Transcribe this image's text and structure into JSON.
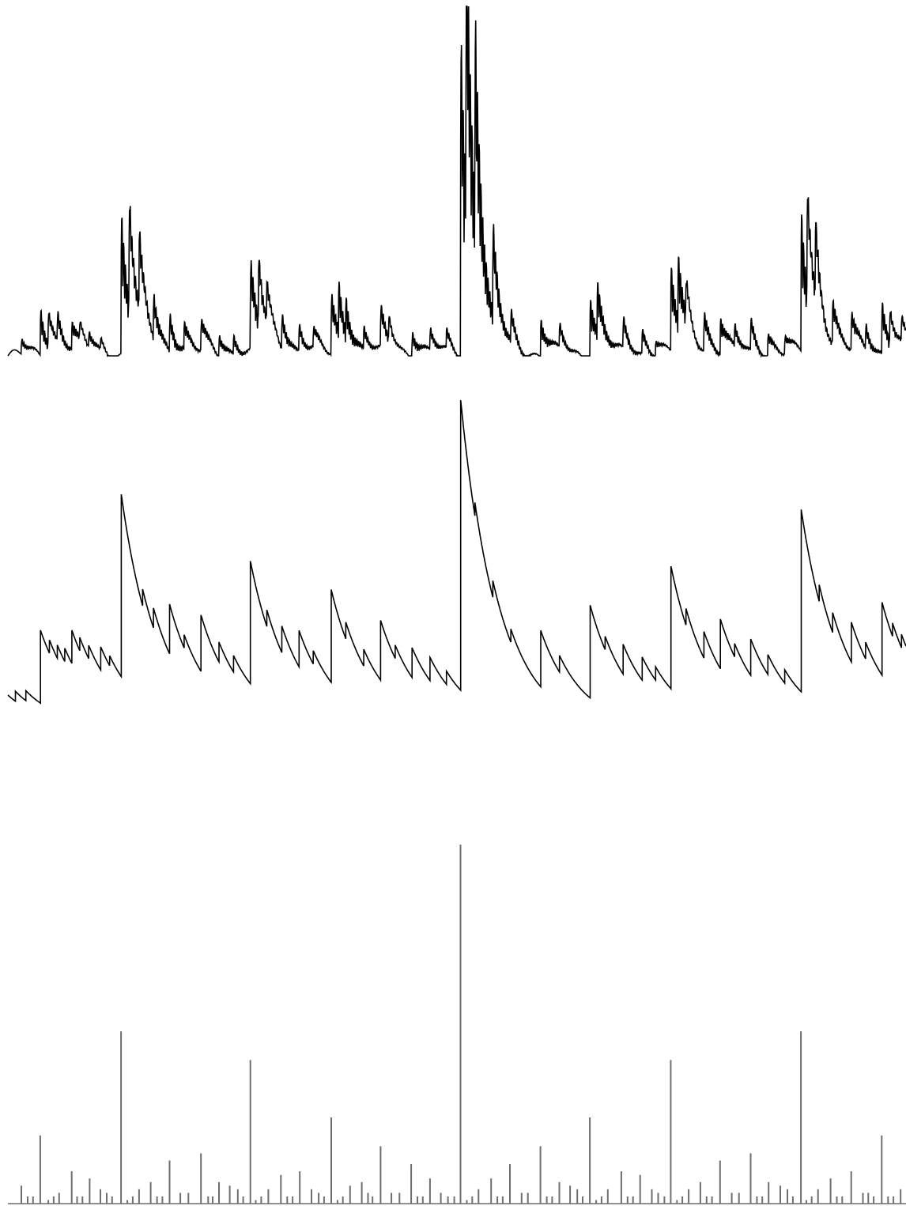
{
  "colors": {
    "trace": "#000000",
    "stems": "#6e6e6e",
    "background": "#ffffff"
  },
  "chart_data": [
    {
      "type": "line",
      "title": "",
      "xlabel": "",
      "ylabel": "",
      "xlim": [
        0,
        1
      ],
      "ylim": [
        0,
        1
      ],
      "grid": false,
      "note_style": "oscillating waveform filled by dense vertical oscillation after each impulse",
      "impulses": [
        {
          "x": 0.015,
          "a": 0.05
        },
        {
          "x": 0.036,
          "a": 0.15
        },
        {
          "x": 0.045,
          "a": 0.12
        },
        {
          "x": 0.055,
          "a": 0.09
        },
        {
          "x": 0.071,
          "a": 0.08
        },
        {
          "x": 0.08,
          "a": 0.06
        },
        {
          "x": 0.09,
          "a": 0.05
        },
        {
          "x": 0.103,
          "a": 0.04
        },
        {
          "x": 0.126,
          "a": 0.44
        },
        {
          "x": 0.135,
          "a": 0.38
        },
        {
          "x": 0.146,
          "a": 0.26
        },
        {
          "x": 0.162,
          "a": 0.14
        },
        {
          "x": 0.18,
          "a": 0.12
        },
        {
          "x": 0.196,
          "a": 0.08
        },
        {
          "x": 0.215,
          "a": 0.1
        },
        {
          "x": 0.235,
          "a": 0.07
        },
        {
          "x": 0.251,
          "a": 0.06
        },
        {
          "x": 0.27,
          "a": 0.28
        },
        {
          "x": 0.279,
          "a": 0.23
        },
        {
          "x": 0.288,
          "a": 0.14
        },
        {
          "x": 0.305,
          "a": 0.12
        },
        {
          "x": 0.324,
          "a": 0.09
        },
        {
          "x": 0.34,
          "a": 0.06
        },
        {
          "x": 0.36,
          "a": 0.19
        },
        {
          "x": 0.368,
          "a": 0.15
        },
        {
          "x": 0.376,
          "a": 0.11
        },
        {
          "x": 0.396,
          "a": 0.07
        },
        {
          "x": 0.415,
          "a": 0.13
        },
        {
          "x": 0.424,
          "a": 0.09
        },
        {
          "x": 0.45,
          "a": 0.09
        },
        {
          "x": 0.47,
          "a": 0.07
        },
        {
          "x": 0.488,
          "a": 0.06
        },
        {
          "x": 0.504,
          "a": 1.0
        },
        {
          "x": 0.51,
          "a": 0.9
        },
        {
          "x": 0.52,
          "a": 0.61
        },
        {
          "x": 0.54,
          "a": 0.29
        },
        {
          "x": 0.56,
          "a": 0.1
        },
        {
          "x": 0.593,
          "a": 0.12
        },
        {
          "x": 0.614,
          "a": 0.08
        },
        {
          "x": 0.648,
          "a": 0.2
        },
        {
          "x": 0.656,
          "a": 0.15
        },
        {
          "x": 0.685,
          "a": 0.1
        },
        {
          "x": 0.706,
          "a": 0.08
        },
        {
          "x": 0.721,
          "a": 0.05
        },
        {
          "x": 0.738,
          "a": 0.27
        },
        {
          "x": 0.746,
          "a": 0.2
        },
        {
          "x": 0.755,
          "a": 0.14
        },
        {
          "x": 0.775,
          "a": 0.12
        },
        {
          "x": 0.793,
          "a": 0.11
        },
        {
          "x": 0.809,
          "a": 0.07
        },
        {
          "x": 0.827,
          "a": 0.1
        },
        {
          "x": 0.846,
          "a": 0.07
        },
        {
          "x": 0.865,
          "a": 0.06
        },
        {
          "x": 0.883,
          "a": 0.44
        },
        {
          "x": 0.89,
          "a": 0.38
        },
        {
          "x": 0.899,
          "a": 0.26
        },
        {
          "x": 0.918,
          "a": 0.14
        },
        {
          "x": 0.939,
          "a": 0.12
        },
        {
          "x": 0.955,
          "a": 0.08
        },
        {
          "x": 0.973,
          "a": 0.16
        },
        {
          "x": 0.982,
          "a": 0.12
        },
        {
          "x": 0.995,
          "a": 0.08
        }
      ]
    },
    {
      "type": "line",
      "title": "",
      "xlabel": "",
      "ylabel": "",
      "xlim": [
        0,
        1
      ],
      "ylim": [
        0,
        1
      ],
      "grid": false,
      "note_style": "sawtooth: jump at each impulse followed by exponential decay",
      "baseline": 0.02,
      "decay": 0.012,
      "impulses": [
        {
          "x": 0.0,
          "a": 0.05
        },
        {
          "x": 0.008,
          "a": 0.03
        },
        {
          "x": 0.02,
          "a": 0.03
        },
        {
          "x": 0.036,
          "a": 0.22
        },
        {
          "x": 0.046,
          "a": 0.04
        },
        {
          "x": 0.055,
          "a": 0.04
        },
        {
          "x": 0.063,
          "a": 0.04
        },
        {
          "x": 0.071,
          "a": 0.1
        },
        {
          "x": 0.08,
          "a": 0.04
        },
        {
          "x": 0.09,
          "a": 0.04
        },
        {
          "x": 0.103,
          "a": 0.07
        },
        {
          "x": 0.113,
          "a": 0.03
        },
        {
          "x": 0.126,
          "a": 0.55
        },
        {
          "x": 0.15,
          "a": 0.05
        },
        {
          "x": 0.162,
          "a": 0.06
        },
        {
          "x": 0.18,
          "a": 0.15
        },
        {
          "x": 0.196,
          "a": 0.04
        },
        {
          "x": 0.215,
          "a": 0.17
        },
        {
          "x": 0.235,
          "a": 0.06
        },
        {
          "x": 0.251,
          "a": 0.05
        },
        {
          "x": 0.27,
          "a": 0.37
        },
        {
          "x": 0.288,
          "a": 0.05
        },
        {
          "x": 0.305,
          "a": 0.08
        },
        {
          "x": 0.324,
          "a": 0.11
        },
        {
          "x": 0.34,
          "a": 0.04
        },
        {
          "x": 0.36,
          "a": 0.28
        },
        {
          "x": 0.376,
          "a": 0.05
        },
        {
          "x": 0.396,
          "a": 0.05
        },
        {
          "x": 0.415,
          "a": 0.18
        },
        {
          "x": 0.431,
          "a": 0.04
        },
        {
          "x": 0.45,
          "a": 0.09
        },
        {
          "x": 0.47,
          "a": 0.07
        },
        {
          "x": 0.488,
          "a": 0.04
        },
        {
          "x": 0.504,
          "a": 1.0
        },
        {
          "x": 0.52,
          "a": 0.04
        },
        {
          "x": 0.54,
          "a": 0.05
        },
        {
          "x": 0.56,
          "a": 0.04
        },
        {
          "x": 0.593,
          "a": 0.17
        },
        {
          "x": 0.614,
          "a": 0.05
        },
        {
          "x": 0.648,
          "a": 0.28
        },
        {
          "x": 0.665,
          "a": 0.04
        },
        {
          "x": 0.685,
          "a": 0.09
        },
        {
          "x": 0.706,
          "a": 0.07
        },
        {
          "x": 0.721,
          "a": 0.04
        },
        {
          "x": 0.738,
          "a": 0.37
        },
        {
          "x": 0.755,
          "a": 0.05
        },
        {
          "x": 0.775,
          "a": 0.08
        },
        {
          "x": 0.793,
          "a": 0.15
        },
        {
          "x": 0.809,
          "a": 0.04
        },
        {
          "x": 0.827,
          "a": 0.11
        },
        {
          "x": 0.846,
          "a": 0.06
        },
        {
          "x": 0.865,
          "a": 0.04
        },
        {
          "x": 0.883,
          "a": 0.55
        },
        {
          "x": 0.903,
          "a": 0.05
        },
        {
          "x": 0.918,
          "a": 0.06
        },
        {
          "x": 0.939,
          "a": 0.12
        },
        {
          "x": 0.955,
          "a": 0.05
        },
        {
          "x": 0.973,
          "a": 0.22
        },
        {
          "x": 0.985,
          "a": 0.04
        },
        {
          "x": 0.995,
          "a": 0.04
        }
      ]
    },
    {
      "type": "bar",
      "title": "",
      "xlabel": "",
      "ylabel": "",
      "xlim": [
        0,
        1
      ],
      "ylim": [
        0,
        1
      ],
      "grid": false,
      "note_style": "stem plot of impulse amplitudes",
      "stems": [
        {
          "x": 0.015,
          "y": 0.05
        },
        {
          "x": 0.022,
          "y": 0.02
        },
        {
          "x": 0.028,
          "y": 0.02
        },
        {
          "x": 0.036,
          "y": 0.19
        },
        {
          "x": 0.045,
          "y": 0.01
        },
        {
          "x": 0.051,
          "y": 0.02
        },
        {
          "x": 0.057,
          "y": 0.03
        },
        {
          "x": 0.071,
          "y": 0.09
        },
        {
          "x": 0.077,
          "y": 0.02
        },
        {
          "x": 0.083,
          "y": 0.02
        },
        {
          "x": 0.091,
          "y": 0.07
        },
        {
          "x": 0.103,
          "y": 0.04
        },
        {
          "x": 0.11,
          "y": 0.03
        },
        {
          "x": 0.116,
          "y": 0.02
        },
        {
          "x": 0.126,
          "y": 0.48
        },
        {
          "x": 0.133,
          "y": 0.01
        },
        {
          "x": 0.139,
          "y": 0.02
        },
        {
          "x": 0.146,
          "y": 0.04
        },
        {
          "x": 0.159,
          "y": 0.06
        },
        {
          "x": 0.166,
          "y": 0.02
        },
        {
          "x": 0.172,
          "y": 0.02
        },
        {
          "x": 0.18,
          "y": 0.12
        },
        {
          "x": 0.192,
          "y": 0.03
        },
        {
          "x": 0.201,
          "y": 0.03
        },
        {
          "x": 0.215,
          "y": 0.14
        },
        {
          "x": 0.223,
          "y": 0.02
        },
        {
          "x": 0.228,
          "y": 0.02
        },
        {
          "x": 0.235,
          "y": 0.06
        },
        {
          "x": 0.247,
          "y": 0.05
        },
        {
          "x": 0.256,
          "y": 0.04
        },
        {
          "x": 0.262,
          "y": 0.02
        },
        {
          "x": 0.27,
          "y": 0.4
        },
        {
          "x": 0.276,
          "y": 0.01
        },
        {
          "x": 0.282,
          "y": 0.02
        },
        {
          "x": 0.29,
          "y": 0.04
        },
        {
          "x": 0.304,
          "y": 0.08
        },
        {
          "x": 0.311,
          "y": 0.02
        },
        {
          "x": 0.317,
          "y": 0.02
        },
        {
          "x": 0.325,
          "y": 0.09
        },
        {
          "x": 0.338,
          "y": 0.04
        },
        {
          "x": 0.346,
          "y": 0.03
        },
        {
          "x": 0.352,
          "y": 0.02
        },
        {
          "x": 0.36,
          "y": 0.24
        },
        {
          "x": 0.367,
          "y": 0.01
        },
        {
          "x": 0.373,
          "y": 0.02
        },
        {
          "x": 0.381,
          "y": 0.05
        },
        {
          "x": 0.394,
          "y": 0.06
        },
        {
          "x": 0.401,
          "y": 0.03
        },
        {
          "x": 0.406,
          "y": 0.02
        },
        {
          "x": 0.415,
          "y": 0.16
        },
        {
          "x": 0.427,
          "y": 0.03
        },
        {
          "x": 0.436,
          "y": 0.03
        },
        {
          "x": 0.449,
          "y": 0.11
        },
        {
          "x": 0.456,
          "y": 0.02
        },
        {
          "x": 0.462,
          "y": 0.02
        },
        {
          "x": 0.47,
          "y": 0.07
        },
        {
          "x": 0.482,
          "y": 0.03
        },
        {
          "x": 0.49,
          "y": 0.02
        },
        {
          "x": 0.497,
          "y": 0.02
        },
        {
          "x": 0.504,
          "y": 1.0
        },
        {
          "x": 0.511,
          "y": 0.01
        },
        {
          "x": 0.517,
          "y": 0.02
        },
        {
          "x": 0.524,
          "y": 0.04
        },
        {
          "x": 0.538,
          "y": 0.07
        },
        {
          "x": 0.545,
          "y": 0.02
        },
        {
          "x": 0.551,
          "y": 0.02
        },
        {
          "x": 0.559,
          "y": 0.11
        },
        {
          "x": 0.572,
          "y": 0.03
        },
        {
          "x": 0.579,
          "y": 0.03
        },
        {
          "x": 0.593,
          "y": 0.16
        },
        {
          "x": 0.6,
          "y": 0.02
        },
        {
          "x": 0.606,
          "y": 0.02
        },
        {
          "x": 0.614,
          "y": 0.06
        },
        {
          "x": 0.626,
          "y": 0.05
        },
        {
          "x": 0.634,
          "y": 0.04
        },
        {
          "x": 0.64,
          "y": 0.02
        },
        {
          "x": 0.648,
          "y": 0.24
        },
        {
          "x": 0.655,
          "y": 0.01
        },
        {
          "x": 0.661,
          "y": 0.02
        },
        {
          "x": 0.668,
          "y": 0.04
        },
        {
          "x": 0.683,
          "y": 0.09
        },
        {
          "x": 0.69,
          "y": 0.02
        },
        {
          "x": 0.696,
          "y": 0.02
        },
        {
          "x": 0.704,
          "y": 0.08
        },
        {
          "x": 0.717,
          "y": 0.04
        },
        {
          "x": 0.724,
          "y": 0.03
        },
        {
          "x": 0.731,
          "y": 0.02
        },
        {
          "x": 0.738,
          "y": 0.4
        },
        {
          "x": 0.745,
          "y": 0.01
        },
        {
          "x": 0.751,
          "y": 0.02
        },
        {
          "x": 0.758,
          "y": 0.04
        },
        {
          "x": 0.771,
          "y": 0.06
        },
        {
          "x": 0.778,
          "y": 0.02
        },
        {
          "x": 0.784,
          "y": 0.02
        },
        {
          "x": 0.793,
          "y": 0.12
        },
        {
          "x": 0.806,
          "y": 0.03
        },
        {
          "x": 0.814,
          "y": 0.03
        },
        {
          "x": 0.827,
          "y": 0.14
        },
        {
          "x": 0.834,
          "y": 0.02
        },
        {
          "x": 0.84,
          "y": 0.02
        },
        {
          "x": 0.847,
          "y": 0.06
        },
        {
          "x": 0.86,
          "y": 0.05
        },
        {
          "x": 0.868,
          "y": 0.04
        },
        {
          "x": 0.874,
          "y": 0.02
        },
        {
          "x": 0.883,
          "y": 0.48
        },
        {
          "x": 0.889,
          "y": 0.01
        },
        {
          "x": 0.895,
          "y": 0.02
        },
        {
          "x": 0.902,
          "y": 0.04
        },
        {
          "x": 0.916,
          "y": 0.07
        },
        {
          "x": 0.923,
          "y": 0.02
        },
        {
          "x": 0.929,
          "y": 0.02
        },
        {
          "x": 0.939,
          "y": 0.09
        },
        {
          "x": 0.952,
          "y": 0.03
        },
        {
          "x": 0.958,
          "y": 0.03
        },
        {
          "x": 0.964,
          "y": 0.02
        },
        {
          "x": 0.973,
          "y": 0.19
        },
        {
          "x": 0.98,
          "y": 0.02
        },
        {
          "x": 0.986,
          "y": 0.02
        },
        {
          "x": 0.994,
          "y": 0.04
        }
      ]
    }
  ]
}
